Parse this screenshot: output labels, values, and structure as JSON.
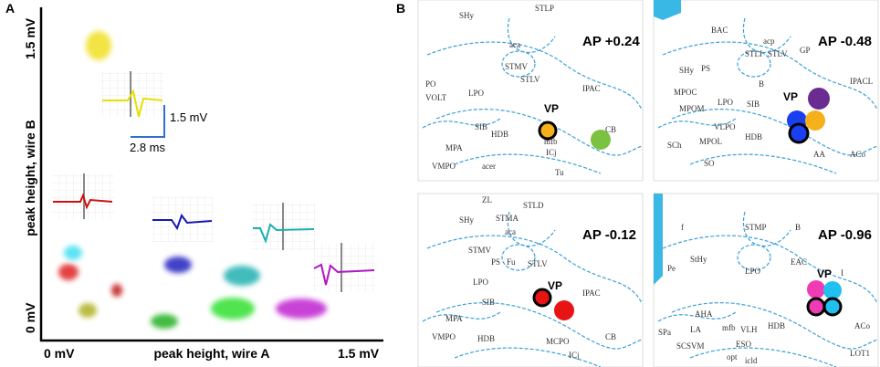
{
  "panel_a": {
    "label": "A",
    "y_axis_label": "peak height,  wire B",
    "y_ticks": [
      "0 mV",
      "1.5 mV"
    ],
    "x_axis_label": "peak height, wire A",
    "x_ticks": [
      "0 mV",
      "1.5 mV"
    ],
    "scale_bar": {
      "vertical": "1.5 mV",
      "horizontal": "2.8 ms"
    }
  },
  "panel_b": {
    "label": "B",
    "sections": [
      {
        "title": "AP +0.24",
        "marker": "VP",
        "regions": [
          "SHy",
          "STLP",
          "aca",
          "STMV",
          "STLV",
          "PO",
          "VOLT",
          "LPO",
          "SIB",
          "IPAC",
          "HDB",
          "MPA",
          "VMPO",
          "mfb",
          "ICj",
          "CB",
          "acer",
          "Tu"
        ]
      },
      {
        "title": "AP -0.48",
        "marker": "VP",
        "regions": [
          "BAC",
          "GP",
          "STLI",
          "STLV",
          "acp",
          "SHy",
          "PS",
          "MPOC",
          "MPOM",
          "LPO",
          "SIB",
          "VLPO",
          "HDB",
          "MPOL",
          "SCh",
          "SO",
          "AA",
          "ACo",
          "IPACL",
          "B"
        ]
      },
      {
        "title": "AP -0.12",
        "marker": "VP",
        "regions": [
          "ZL",
          "STLD",
          "SHy",
          "STMA",
          "aca",
          "STMV",
          "PS",
          "Fu",
          "STLV",
          "LPO",
          "SIB",
          "IPAC",
          "MPA",
          "VMPO",
          "HDB",
          "MCPO",
          "CB",
          "ICj"
        ]
      },
      {
        "title": "AP -0.96",
        "marker": "VP",
        "regions": [
          "f",
          "STMP",
          "B",
          "StHy",
          "EAC",
          "Pe",
          "LPO",
          "AHA",
          "LA",
          "mfb",
          "VLH",
          "ESO",
          "HDB",
          "SPa",
          "SCSVM",
          "opt",
          "ACo",
          "I",
          "icld",
          "LOT1"
        ]
      }
    ]
  }
}
